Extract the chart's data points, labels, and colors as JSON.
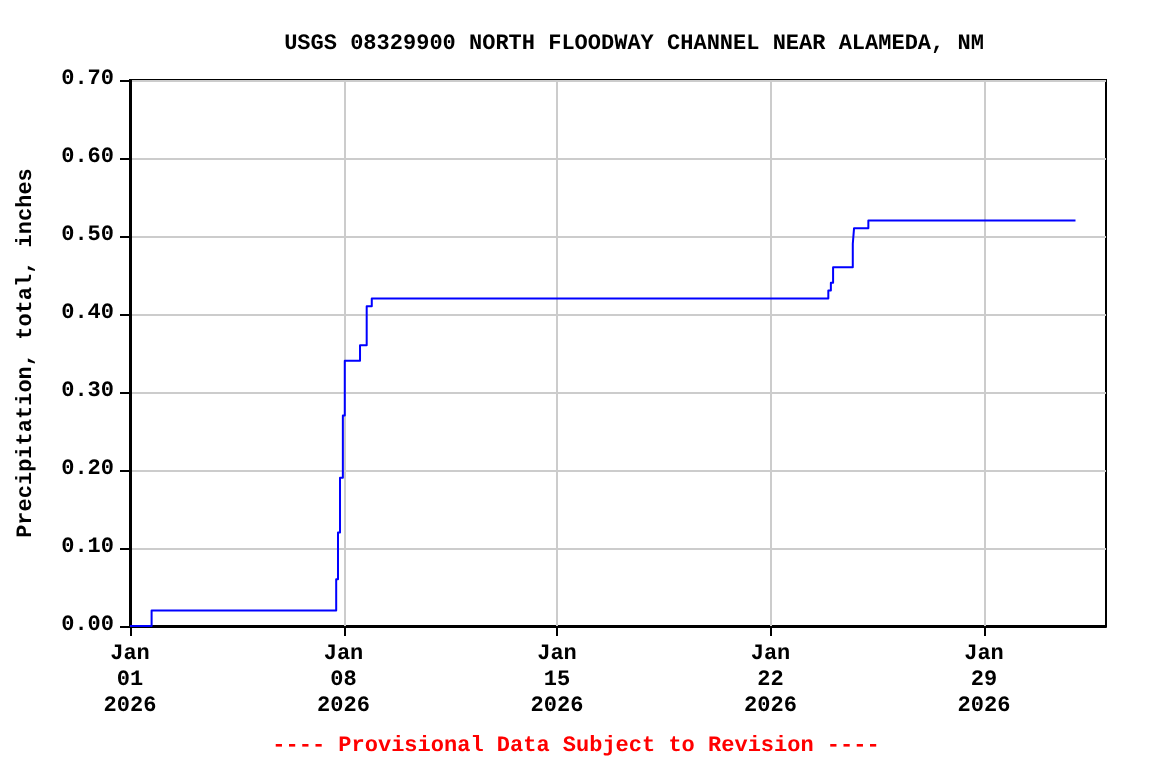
{
  "chart_data": {
    "type": "step",
    "title": "USGS 08329900 NORTH FLOODWAY CHANNEL NEAR ALAMEDA, NM",
    "ylabel": "Precipitation, total, inches",
    "annotations": [
      "---- Provisional Data Subject to Revision ----"
    ],
    "x": [
      "2026-01-01T00:00",
      "2026-01-01T17:00",
      "2026-01-07T18:15",
      "2026-01-07T19:40",
      "2026-01-07T21:15",
      "2026-01-07T23:30",
      "2026-01-08T01:00",
      "2026-01-08T13:00",
      "2026-01-08T18:15",
      "2026-01-08T22:15",
      "2026-01-23T21:30",
      "2026-01-23T23:30",
      "2026-01-24T01:15",
      "2026-01-24T16:45",
      "2026-01-24T17:45",
      "2026-01-25T05:00",
      "2026-02-01T00:00"
    ],
    "series": [
      {
        "color": "#0000ff",
        "values": [
          0.0,
          0.02,
          0.06,
          0.12,
          0.19,
          0.27,
          0.34,
          0.36,
          0.41,
          0.42,
          0.43,
          0.44,
          0.46,
          0.49,
          0.51,
          0.52,
          0.52
        ]
      }
    ],
    "xlim": [
      "2026-01-01T00:00",
      "2026-02-02T00:00"
    ],
    "xticks": [
      {
        "value": "2026-01-01T00:00",
        "label": "Jan\n01\n2026"
      },
      {
        "value": "2026-01-08T00:00",
        "label": "Jan\n08\n2026"
      },
      {
        "value": "2026-01-15T00:00",
        "label": "Jan\n15\n2026"
      },
      {
        "value": "2026-01-22T00:00",
        "label": "Jan\n22\n2026"
      },
      {
        "value": "2026-01-29T00:00",
        "label": "Jan\n29\n2026"
      }
    ],
    "ylim": [
      0,
      0.7
    ],
    "yticks": [
      {
        "value": 0,
        "label": "0.00"
      },
      {
        "value": 0.1,
        "label": "0.10"
      },
      {
        "value": 0.2,
        "label": "0.20"
      },
      {
        "value": 0.3,
        "label": "0.30"
      },
      {
        "value": 0.4,
        "label": "0.40"
      },
      {
        "value": 0.5,
        "label": "0.50"
      },
      {
        "value": 0.6,
        "label": "0.60"
      },
      {
        "value": 0.7,
        "label": "0.70"
      }
    ],
    "grid": true,
    "marker": "none",
    "line_style": "solid"
  }
}
